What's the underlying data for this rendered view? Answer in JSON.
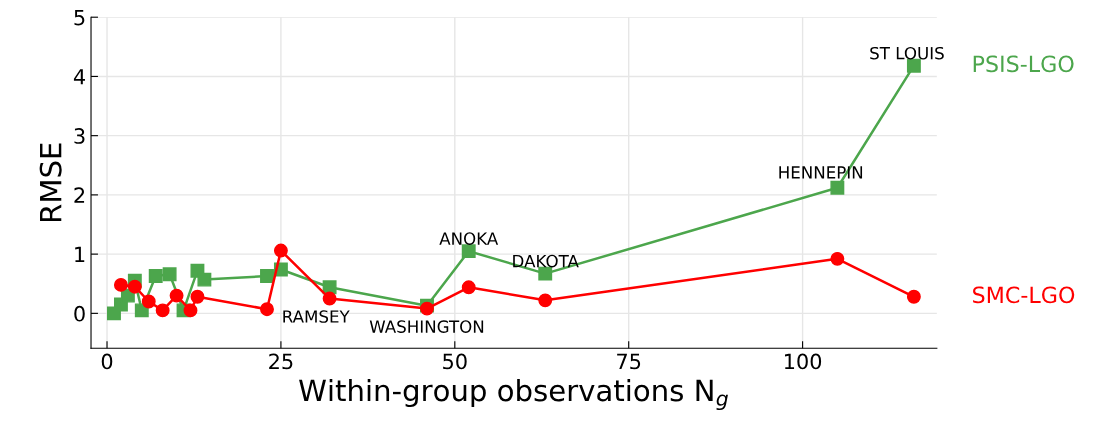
{
  "chart_data": {
    "type": "line",
    "xlabel": "Within-group observations N$_{g}$",
    "ylabel": "RMSE",
    "xlim": [
      -2.3,
      119.3
    ],
    "ylim": [
      -0.59,
      5
    ],
    "xticks": [
      0,
      25,
      50,
      75,
      100
    ],
    "yticks": [
      0,
      1,
      2,
      3,
      4,
      5
    ],
    "grid": true,
    "legend": false,
    "series": [
      {
        "name": "PSIS-LGO",
        "color": "#4ca64c",
        "marker": "square",
        "x": [
          1,
          2,
          3,
          4,
          5,
          7,
          9,
          11,
          13,
          14,
          23,
          25,
          32,
          46,
          52,
          63,
          105,
          116
        ],
        "values": [
          0,
          0.15,
          0.3,
          0.55,
          0.05,
          0.63,
          0.66,
          0.05,
          0.72,
          0.57,
          0.63,
          0.74,
          0.44,
          0.13,
          1.05,
          0.67,
          2.12,
          4.18
        ]
      },
      {
        "name": "SMC-LGO",
        "color": "#ff0000",
        "marker": "circle",
        "x": [
          2,
          4,
          6,
          8,
          10,
          12,
          13,
          23,
          25,
          32,
          46,
          52,
          63,
          105,
          116
        ],
        "values": [
          0.48,
          0.45,
          0.2,
          0.05,
          0.3,
          0.05,
          0.28,
          0.07,
          1.06,
          0.25,
          0.08,
          0.44,
          0.22,
          0.92,
          0.28
        ]
      }
    ],
    "annotations": [
      {
        "text": "ST LOUIS",
        "x": 116,
        "y": 4.18
      },
      {
        "text": "HENNEPIN",
        "x": 105,
        "y": 2.12
      },
      {
        "text": "ANOKA",
        "x": 52,
        "y": 1.05
      },
      {
        "text": "DAKOTA",
        "x": 63,
        "y": 0.67
      },
      {
        "text": "RAMSEY",
        "x": 32,
        "y": 0.25
      },
      {
        "text": "WASHINGTON",
        "x": 46,
        "y": 0.08
      }
    ]
  }
}
